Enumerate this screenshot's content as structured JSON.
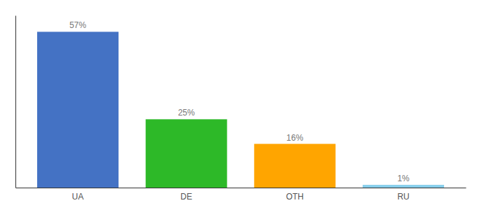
{
  "chart_data": {
    "type": "bar",
    "categories": [
      "UA",
      "DE",
      "OTH",
      "RU"
    ],
    "values": [
      57,
      25,
      16,
      1
    ],
    "value_labels": [
      "57%",
      "25%",
      "16%",
      "1%"
    ],
    "colors": [
      "#4472C4",
      "#2DB928",
      "#FFA500",
      "#87CEEB"
    ],
    "ylim": [
      0,
      63
    ],
    "grid": false,
    "data_labels": true,
    "tick_labels": "x"
  }
}
